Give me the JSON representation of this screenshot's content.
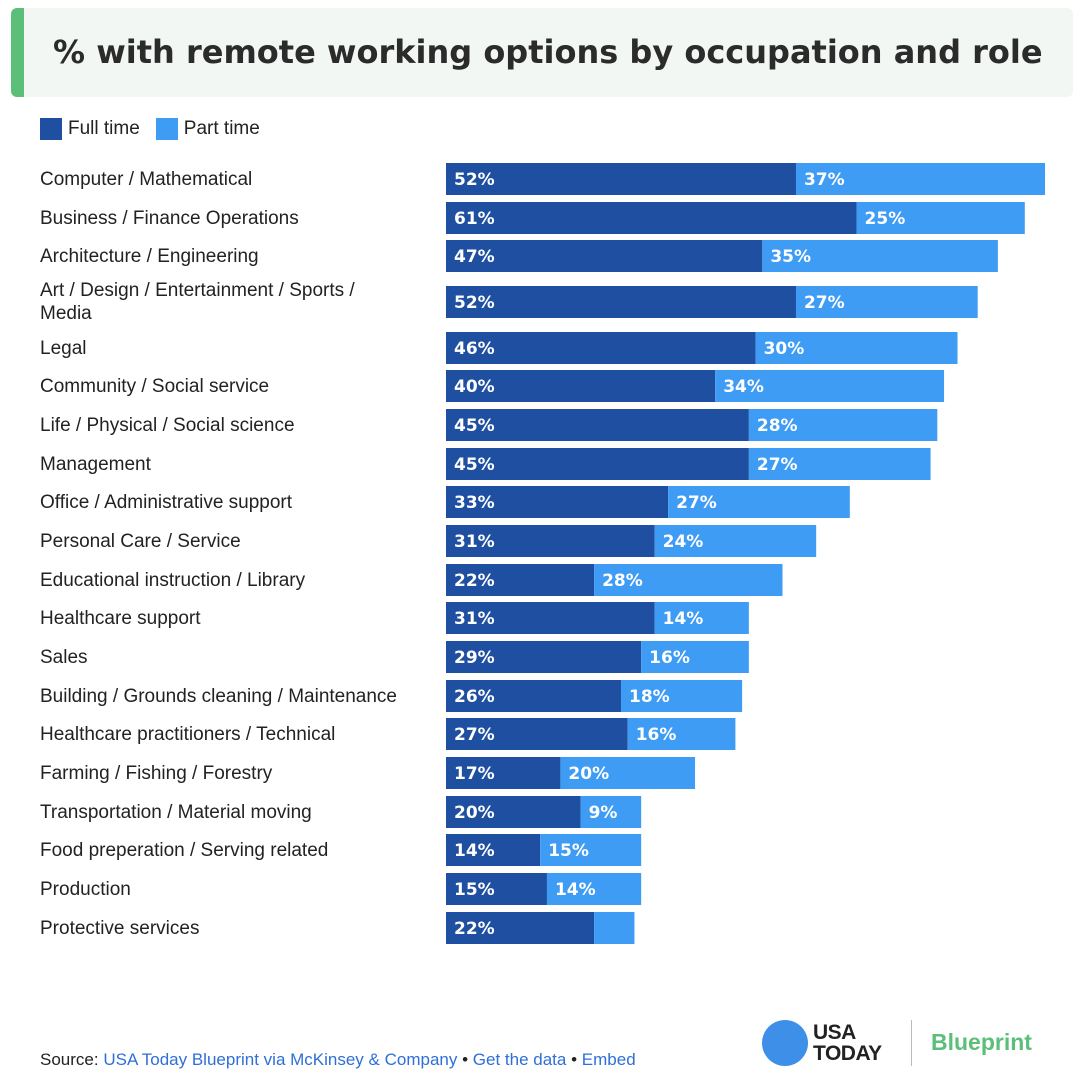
{
  "title": "% with remote working options by occupation and role",
  "legend": [
    {
      "label": "Full time",
      "color": "#1e4fa0"
    },
    {
      "label": "Part time",
      "color": "#3f9cf5"
    }
  ],
  "chart_data": {
    "type": "bar",
    "orientation": "horizontal",
    "stacked": true,
    "title": "% with remote working options by occupation and role",
    "categories": [
      "Computer / Mathematical",
      "Business / Finance Operations",
      "Architecture / Engineering",
      "Art / Design / Entertainment / Sports / Media",
      "Legal",
      "Community / Social service",
      "Life / Physical / Social science",
      "Management",
      "Office / Administrative support",
      "Personal Care / Service",
      "Educational instruction / Library",
      "Healthcare support",
      "Sales",
      "Building / Grounds cleaning / Maintenance",
      "Healthcare practitioners / Technical",
      "Farming / Fishing / Forestry",
      "Transportation / Material moving",
      "Food preperation / Serving related",
      "Production",
      "Protective services"
    ],
    "series": [
      {
        "name": "Full time",
        "color": "#1e4fa0",
        "values": [
          52,
          61,
          47,
          52,
          46,
          40,
          45,
          45,
          33,
          31,
          22,
          31,
          29,
          26,
          27,
          17,
          20,
          14,
          15,
          22
        ],
        "labels": [
          "52%",
          "61%",
          "47%",
          "52%",
          "46%",
          "40%",
          "45%",
          "45%",
          "33%",
          "31%",
          "22%",
          "31%",
          "29%",
          "26%",
          "27%",
          "17%",
          "20%",
          "14%",
          "15%",
          "22%"
        ]
      },
      {
        "name": "Part time",
        "color": "#3f9cf5",
        "values": [
          37,
          25,
          35,
          27,
          30,
          34,
          28,
          27,
          27,
          24,
          28,
          14,
          16,
          18,
          16,
          20,
          9,
          15,
          14,
          6
        ],
        "labels": [
          "37%",
          "25%",
          "35%",
          "27%",
          "30%",
          "34%",
          "28%",
          "27%",
          "27%",
          "24%",
          "28%",
          "14%",
          "16%",
          "18%",
          "16%",
          "20%",
          "9%",
          "15%",
          "14%",
          ""
        ]
      }
    ],
    "xlim": [
      0,
      89
    ],
    "legend_position": "top-left",
    "grid": false
  },
  "footer": {
    "source_label": "Source:",
    "source_link": "USA Today Blueprint via McKinsey & Company",
    "sep": "•",
    "get_data": "Get the data",
    "embed": "Embed"
  },
  "logo": {
    "line1": "USA",
    "line2": "TODAY",
    "brand": "Blueprint"
  }
}
